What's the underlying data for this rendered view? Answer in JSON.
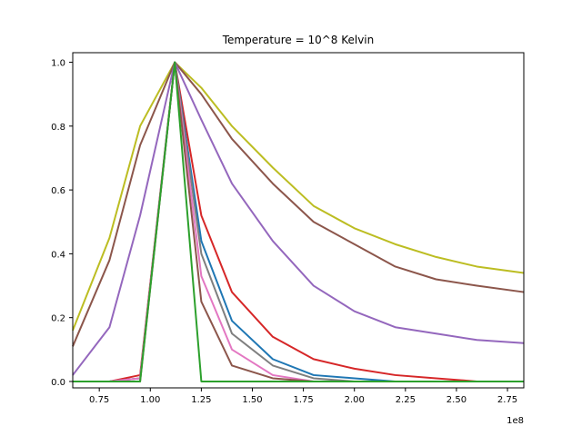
{
  "chart_data": {
    "type": "line",
    "title": "Temperature = 10^8 Kelvin",
    "xlabel": "",
    "ylabel": "",
    "x_offset_label": "1e8",
    "xlim": [
      0.62,
      2.83
    ],
    "ylim": [
      -0.02,
      1.03
    ],
    "x_ticks": [
      0.75,
      1.0,
      1.25,
      1.5,
      1.75,
      2.0,
      2.25,
      2.5,
      2.75
    ],
    "x_tick_labels": [
      "0.75",
      "1.00",
      "1.25",
      "1.50",
      "1.75",
      "2.00",
      "2.25",
      "2.50",
      "2.75"
    ],
    "y_ticks": [
      0.0,
      0.2,
      0.4,
      0.6,
      0.8,
      1.0
    ],
    "y_tick_labels": [
      "0.0",
      "0.2",
      "0.4",
      "0.6",
      "0.8",
      "1.0"
    ],
    "grid": false,
    "legend": "none",
    "peak_x": 1.12,
    "series": [
      {
        "color": "#bcbd22",
        "values": [
          0.16,
          0.45,
          0.8,
          1.0,
          0.92,
          0.8,
          0.67,
          0.55,
          0.48,
          0.43,
          0.39,
          0.36,
          0.34
        ]
      },
      {
        "color": "#8c564b",
        "values": [
          0.11,
          0.38,
          0.74,
          1.0,
          0.9,
          0.76,
          0.62,
          0.5,
          0.43,
          0.36,
          0.32,
          0.3,
          0.28
        ]
      },
      {
        "color": "#9467bd",
        "values": [
          0.02,
          0.17,
          0.52,
          1.0,
          0.82,
          0.62,
          0.44,
          0.3,
          0.22,
          0.17,
          0.15,
          0.13,
          0.12
        ]
      },
      {
        "color": "#d62728",
        "values": [
          0.0,
          0.0,
          0.02,
          1.0,
          0.52,
          0.28,
          0.14,
          0.07,
          0.04,
          0.02,
          0.01,
          0.0,
          0.0
        ]
      },
      {
        "color": "#1f77b4",
        "values": [
          0.0,
          0.0,
          0.01,
          1.0,
          0.44,
          0.19,
          0.07,
          0.02,
          0.01,
          0.0,
          0.0,
          0.0,
          0.0
        ]
      },
      {
        "color": "#7f7f7f",
        "values": [
          0.0,
          0.0,
          0.01,
          1.0,
          0.4,
          0.15,
          0.05,
          0.01,
          0.0,
          0.0,
          0.0,
          0.0,
          0.0
        ]
      },
      {
        "color": "#e377c2",
        "values": [
          0.0,
          0.0,
          0.01,
          1.0,
          0.33,
          0.1,
          0.02,
          0.0,
          0.0,
          0.0,
          0.0,
          0.0,
          0.0
        ]
      },
      {
        "color": "#8c564b",
        "values": [
          0.0,
          0.0,
          0.0,
          1.0,
          0.25,
          0.05,
          0.01,
          0.0,
          0.0,
          0.0,
          0.0,
          0.0,
          0.0
        ]
      },
      {
        "color": "#2ca02c",
        "values": [
          0.0,
          0.0,
          0.0,
          1.0,
          0.0,
          0.0,
          0.0,
          0.0,
          0.0,
          0.0,
          0.0,
          0.0,
          0.0
        ]
      }
    ],
    "x": [
      0.62,
      0.8,
      0.95,
      1.12,
      1.25,
      1.4,
      1.6,
      1.8,
      2.0,
      2.2,
      2.4,
      2.6,
      2.83
    ]
  }
}
